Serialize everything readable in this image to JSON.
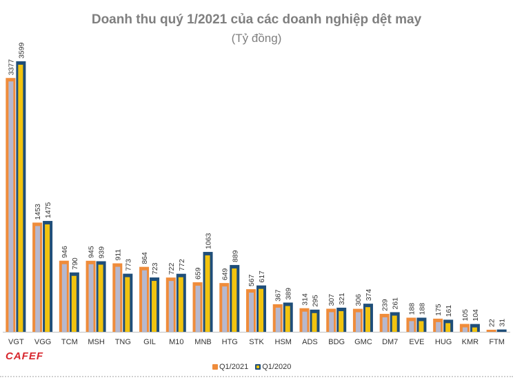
{
  "chart_data": {
    "type": "bar",
    "title": "Doanh thu quý 1/2021 của các doanh nghiệp dệt may",
    "subtitle": "(Tỷ đồng)",
    "categories": [
      "VGT",
      "VGG",
      "TCM",
      "MSH",
      "TNG",
      "GIL",
      "M10",
      "MNB",
      "HTG",
      "STK",
      "HSM",
      "ADS",
      "BDG",
      "GMC",
      "DM7",
      "EVE",
      "HUG",
      "KMR",
      "FTM"
    ],
    "series": [
      {
        "name": "Q1/2021",
        "values": [
          3377,
          1453,
          946,
          945,
          911,
          864,
          722,
          659,
          649,
          567,
          367,
          314,
          307,
          306,
          239,
          188,
          175,
          105,
          22
        ]
      },
      {
        "name": "Q1/2020",
        "values": [
          3599,
          1475,
          790,
          939,
          773,
          723,
          772,
          1063,
          889,
          617,
          389,
          295,
          321,
          374,
          261,
          188,
          161,
          104,
          31
        ]
      }
    ],
    "ylim": [
      0,
      3700
    ],
    "grid": false,
    "legend_position": "bottom",
    "colors": {
      "q2021_outer": "#ef8c3b",
      "q2021_inner": "#b6b8cf",
      "q2020_outer": "#1f4e79",
      "q2020_inner": "#f2c40f",
      "axis": "#bfbfbf",
      "label": "#333333"
    }
  },
  "logo": "CAFEF"
}
